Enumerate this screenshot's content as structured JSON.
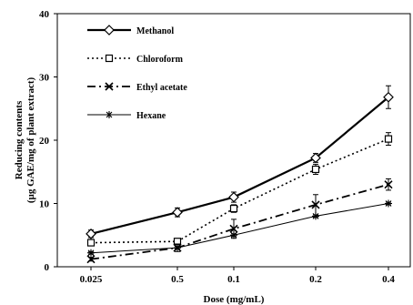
{
  "chart_data": {
    "type": "line",
    "categories": [
      "0.025",
      "0.5",
      "0.1",
      "0.2",
      "0.4"
    ],
    "xlabel": "Dose (mg/mL)",
    "ylabel_lines": [
      "Reducing contents",
      "(µg GAE/mg of plant extract)"
    ],
    "ylim": [
      0,
      40
    ],
    "yticks": [
      "0",
      "10",
      "20",
      "30",
      "40"
    ],
    "grid": false,
    "legend_position": "top-left",
    "series": [
      {
        "name": "Methanol",
        "marker": "diamond",
        "line": "solid-thick",
        "values": [
          5.2,
          8.6,
          11.0,
          17.2,
          26.8
        ],
        "errors": [
          0.6,
          0.7,
          0.8,
          0.7,
          1.8
        ]
      },
      {
        "name": "Chloroform",
        "marker": "square",
        "line": "dotted",
        "values": [
          3.8,
          4.0,
          9.2,
          15.4,
          20.2
        ],
        "errors": [
          0.3,
          0.3,
          0.6,
          0.8,
          1.0
        ]
      },
      {
        "name": "Ethyl acetate",
        "marker": "x",
        "line": "dash-dot",
        "values": [
          1.2,
          3.0,
          6.0,
          9.8,
          13.0
        ],
        "errors": [
          0.3,
          0.6,
          1.5,
          1.6,
          0.9
        ]
      },
      {
        "name": "Hexane",
        "marker": "star",
        "line": "solid-thin",
        "values": [
          2.2,
          3.0,
          5.0,
          8.0,
          10.0
        ],
        "errors": [
          0.2,
          0.2,
          0.2,
          0.2,
          0.2
        ]
      }
    ]
  }
}
